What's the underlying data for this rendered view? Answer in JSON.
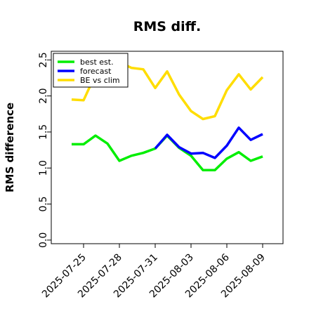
{
  "chart_data": {
    "type": "line",
    "title": "RMS diff.",
    "xlabel": "",
    "ylabel": "RMS difference",
    "ylim": [
      0.0,
      2.5
    ],
    "yticks": [
      "0.0",
      "0.5",
      "1.0",
      "1.5",
      "2.0",
      "2.5"
    ],
    "grid": false,
    "legend_position": "top-left",
    "x": [
      "2025-07-24",
      "2025-07-25",
      "2025-07-26",
      "2025-07-27",
      "2025-07-28",
      "2025-07-29",
      "2025-07-30",
      "2025-07-31",
      "2025-08-01",
      "2025-08-02",
      "2025-08-03",
      "2025-08-04",
      "2025-08-05",
      "2025-08-06",
      "2025-08-07",
      "2025-08-08",
      "2025-08-09"
    ],
    "xticks": [
      "2025-07-25",
      "2025-07-28",
      "2025-07-31",
      "2025-08-03",
      "2025-08-06",
      "2025-08-09"
    ],
    "highlighted_xtick": "2025-07-31",
    "series": [
      {
        "name": "best est.",
        "color": "#00ee00",
        "values": [
          1.33,
          1.33,
          1.45,
          1.34,
          1.1,
          1.17,
          1.21,
          1.27,
          1.45,
          1.28,
          1.17,
          0.97,
          0.97,
          1.13,
          1.22,
          1.1,
          1.16
        ]
      },
      {
        "name": "forecast",
        "color": "#0000ff",
        "values": [
          null,
          null,
          null,
          null,
          null,
          null,
          null,
          1.27,
          1.46,
          1.29,
          1.2,
          1.21,
          1.14,
          1.31,
          1.56,
          1.39,
          1.47
        ]
      },
      {
        "name": "BE vs clim",
        "color": "#ffdd00",
        "values": [
          1.95,
          1.94,
          2.3,
          2.36,
          2.47,
          2.39,
          2.37,
          2.11,
          2.34,
          2.02,
          1.79,
          1.68,
          1.72,
          2.08,
          2.3,
          2.09,
          2.26
        ]
      }
    ]
  }
}
